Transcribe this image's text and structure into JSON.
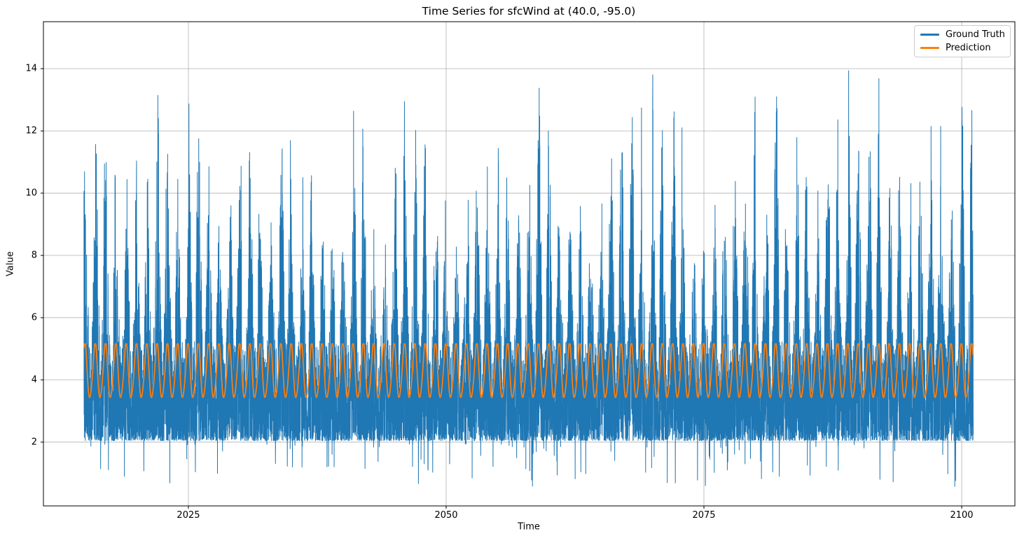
{
  "figure": {
    "background": "#ffffff"
  },
  "chart_data": {
    "type": "line",
    "title": "Time Series for sfcWind at (40.0, -95.0)",
    "xlabel": "Time",
    "ylabel": "Value",
    "xlim": [
      2010.94,
      2105.16
    ],
    "ylim": [
      -0.05,
      15.51
    ],
    "xticks": [
      2025,
      2050,
      2075,
      2100
    ],
    "xtick_labels": [
      "2025",
      "2050",
      "2075",
      "2100"
    ],
    "yticks": [
      2,
      4,
      6,
      8,
      10,
      12,
      14
    ],
    "ytick_labels": [
      "2",
      "4",
      "6",
      "8",
      "10",
      "12",
      "14"
    ],
    "grid": true,
    "grid_color": "#b0b0b0",
    "spine_color": "#000000",
    "x_start": 2014.87,
    "x_end": 2101.12,
    "legend": {
      "location": "upper right",
      "entries": [
        {
          "label": "Ground Truth",
          "color": "#1f77b4"
        },
        {
          "label": "Prediction",
          "color": "#ff7f0e"
        }
      ]
    },
    "series": [
      {
        "name": "Ground Truth",
        "color": "#1f77b4",
        "kind": "noisy_daily_wind",
        "seed": 42,
        "points_per_year": 120,
        "value_min": 0.55,
        "value_max": 14.82,
        "dense_band": [
          2.05,
          5.15
        ],
        "annual_peak_range": [
          8.3,
          14.6
        ],
        "annual_period_years": 1,
        "height_bias_exponent": 1.9,
        "downspike_prob": 0.01,
        "downspike_depth": [
          0.1,
          1.5
        ]
      },
      {
        "name": "Prediction",
        "color": "#ff7f0e",
        "kind": "seasonal_cycle",
        "mean": 4.25,
        "amplitude": 0.88,
        "harmonic2_amplitude": 0.1,
        "period_years": 1,
        "points_per_year": 48,
        "min": 3.33,
        "max": 5.16
      }
    ]
  }
}
